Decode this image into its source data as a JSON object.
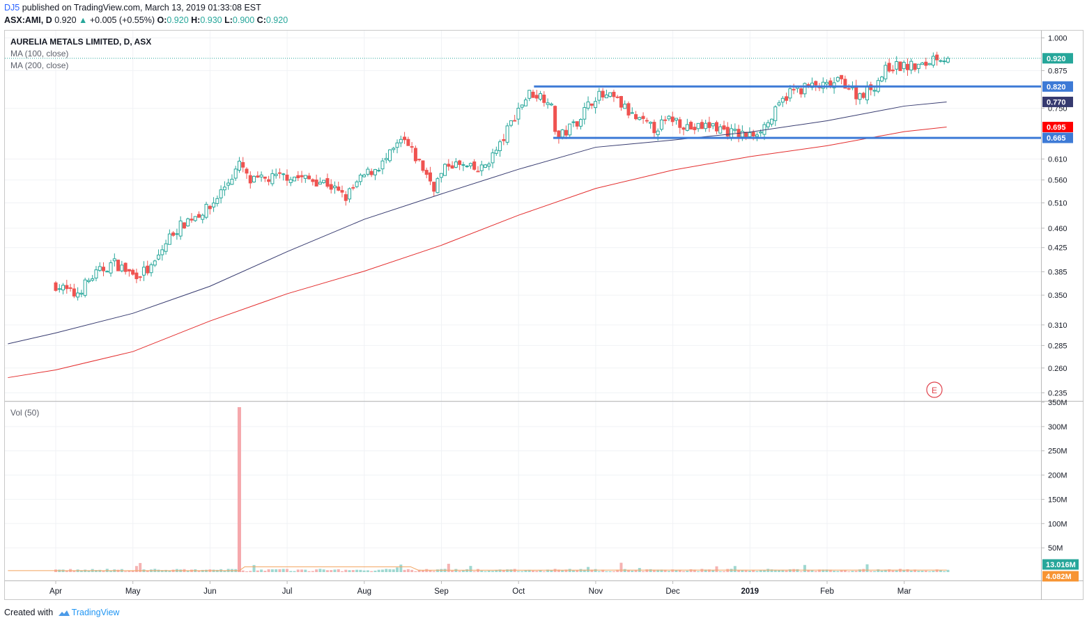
{
  "header": {
    "author": "DJ5",
    "published": "published on TradingView.com, March 13, 2019 01:33:08 EST",
    "symbol": "ASX:AMI, D",
    "last": "0.920",
    "change_icon": "triangle-up-icon",
    "change": "+0.005 (+0.55%)",
    "o_label": "O:",
    "o_value": "0.920",
    "h_label": "H:",
    "h_value": "0.930",
    "l_label": "L:",
    "l_value": "0.900",
    "c_label": "C:",
    "c_value": "0.920"
  },
  "legend": {
    "title": "AURELIA METALS LIMITED, D, ASX",
    "ma100": "MA (100, close)",
    "ma200": "MA (200, close)",
    "volume": "Vol (50)"
  },
  "footer": {
    "created_with": "Created with",
    "brand": "TradingView",
    "logo_icon": "tradingview-logo-icon"
  },
  "colors": {
    "up": "#26a69a",
    "down": "#ef5350",
    "ma100": "#363a6f",
    "ma200": "#e32b2b",
    "hline": "#3d7ad6",
    "vol_ma": "#f2a25c",
    "volume_badge": "#26a69a",
    "vol_ma_badge": "#f79433"
  },
  "earnings_marker": "E",
  "chart_data": {
    "type": "candlestick",
    "title": "AURELIA METALS LIMITED, D, ASX",
    "x_labels": [
      "Apr",
      "May",
      "Jun",
      "Jul",
      "Aug",
      "Sep",
      "Oct",
      "Nov",
      "Dec",
      "2019",
      "Feb",
      "Mar"
    ],
    "price_axis": {
      "scale": "log",
      "ticks": [
        "1.000",
        "0.875",
        "0.750",
        "0.610",
        "0.560",
        "0.510",
        "0.460",
        "0.425",
        "0.385",
        "0.350",
        "0.310",
        "0.285",
        "0.260",
        "0.235"
      ],
      "range": [
        0.228,
        1.03
      ]
    },
    "price_badges": [
      {
        "label": "0.920",
        "value": 0.92,
        "color": "#26a69a"
      },
      {
        "label": "0.820",
        "value": 0.82,
        "color": "#3d7ad6"
      },
      {
        "label": "0.770",
        "value": 0.77,
        "color": "#363a6f"
      },
      {
        "label": "0.695",
        "value": 0.695,
        "color": "#ff0000"
      },
      {
        "label": "0.665",
        "value": 0.665,
        "color": "#3d7ad6"
      }
    ],
    "horizontal_lines": [
      {
        "value": 0.82,
        "from_month": 6.2,
        "to_month": 12.5
      },
      {
        "value": 0.665,
        "from_month": 6.45,
        "to_month": 12.5
      }
    ],
    "last_price_line": 0.92,
    "ohlc_anchor_closes": [
      [
        0,
        0.365
      ],
      [
        0.25,
        0.35
      ],
      [
        0.5,
        0.38
      ],
      [
        0.75,
        0.4
      ],
      [
        1.0,
        0.38
      ],
      [
        1.25,
        0.39
      ],
      [
        1.5,
        0.45
      ],
      [
        1.75,
        0.48
      ],
      [
        2.0,
        0.5
      ],
      [
        2.25,
        0.56
      ],
      [
        2.4,
        0.6
      ],
      [
        2.5,
        0.555
      ],
      [
        3.0,
        0.57
      ],
      [
        3.5,
        0.555
      ],
      [
        3.75,
        0.52
      ],
      [
        4.0,
        0.57
      ],
      [
        4.25,
        0.6
      ],
      [
        4.5,
        0.66
      ],
      [
        4.75,
        0.59
      ],
      [
        4.9,
        0.545
      ],
      [
        5.1,
        0.6
      ],
      [
        5.5,
        0.58
      ],
      [
        5.75,
        0.64
      ],
      [
        6.0,
        0.75
      ],
      [
        6.15,
        0.8
      ],
      [
        6.4,
        0.78
      ],
      [
        6.5,
        0.66
      ],
      [
        6.75,
        0.71
      ],
      [
        7.0,
        0.79
      ],
      [
        7.25,
        0.78
      ],
      [
        7.5,
        0.72
      ],
      [
        7.75,
        0.69
      ],
      [
        8.0,
        0.72
      ],
      [
        8.25,
        0.69
      ],
      [
        8.5,
        0.7
      ],
      [
        8.75,
        0.68
      ],
      [
        9.0,
        0.67
      ],
      [
        9.25,
        0.71
      ],
      [
        9.5,
        0.8
      ],
      [
        9.75,
        0.82
      ],
      [
        10.0,
        0.82
      ],
      [
        10.2,
        0.84
      ],
      [
        10.4,
        0.79
      ],
      [
        10.6,
        0.82
      ],
      [
        10.8,
        0.89
      ],
      [
        11.0,
        0.89
      ],
      [
        11.25,
        0.89
      ],
      [
        11.4,
        0.93
      ],
      [
        11.55,
        0.92
      ]
    ],
    "ma100_points": [
      [
        -0.62,
        0.287
      ],
      [
        0,
        0.3
      ],
      [
        1,
        0.325
      ],
      [
        2,
        0.363
      ],
      [
        3,
        0.418
      ],
      [
        4,
        0.477
      ],
      [
        5,
        0.529
      ],
      [
        6,
        0.585
      ],
      [
        7,
        0.64
      ],
      [
        8,
        0.659
      ],
      [
        9,
        0.681
      ],
      [
        10,
        0.713
      ],
      [
        11,
        0.757
      ],
      [
        11.55,
        0.77
      ]
    ],
    "ma200_points": [
      [
        -0.62,
        0.25
      ],
      [
        0,
        0.258
      ],
      [
        1,
        0.278
      ],
      [
        2,
        0.315
      ],
      [
        3,
        0.352
      ],
      [
        4,
        0.386
      ],
      [
        5,
        0.429
      ],
      [
        6,
        0.485
      ],
      [
        7,
        0.541
      ],
      [
        8,
        0.583
      ],
      [
        9,
        0.616
      ],
      [
        10,
        0.644
      ],
      [
        11,
        0.682
      ],
      [
        11.55,
        0.695
      ]
    ],
    "volume": {
      "axis_ticks": [
        "350M",
        "300M",
        "250M",
        "200M",
        "150M",
        "100M",
        "50M"
      ],
      "range": [
        0,
        350
      ],
      "spike": {
        "month": 2.38,
        "value": 340
      },
      "typical_value_M": 4,
      "ma_line_M": [
        [
          -0.62,
          3
        ],
        [
          2.38,
          3
        ],
        [
          2.45,
          11
        ],
        [
          4.6,
          11
        ],
        [
          4.7,
          4
        ],
        [
          11.55,
          4.1
        ]
      ],
      "badges": [
        {
          "label": "13.016M",
          "value": 13.016,
          "color": "#26a69a"
        },
        {
          "label": "4.082M",
          "value": 4.082,
          "color": "#f79433"
        }
      ]
    }
  }
}
